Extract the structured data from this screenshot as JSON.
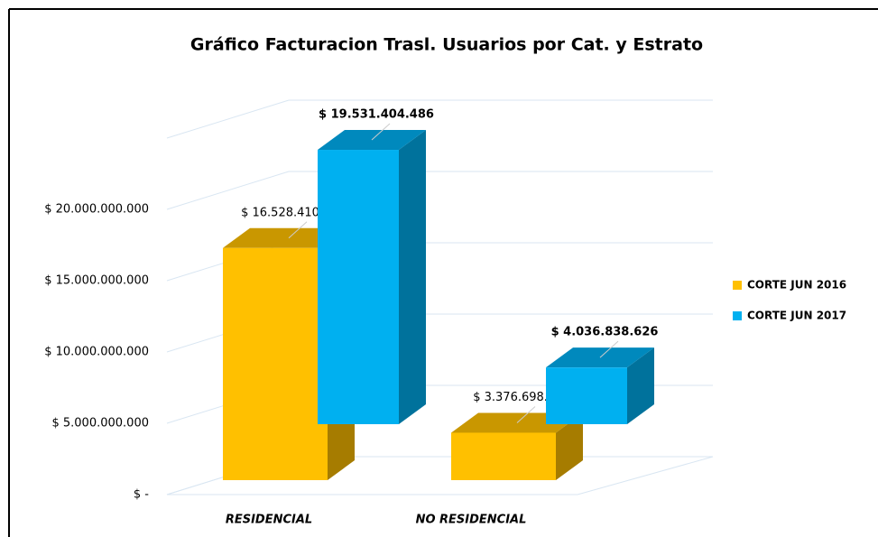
{
  "chart_data": {
    "type": "bar3d",
    "title": "Gráfico Facturacion Trasl. Usuarios por Cat. y Estrato",
    "categories": [
      "RESIDENCIAL",
      "NO RESIDENCIAL"
    ],
    "series": [
      {
        "name": "CORTE JUN 2016",
        "color": "#FFC000",
        "side": "#A67C00",
        "top": "#C99700",
        "bold": false,
        "values": [
          16528410565,
          3376698824
        ],
        "value_labels": [
          "$ 16.528.410.565",
          "$ 3.376.698.824"
        ]
      },
      {
        "name": "CORTE JUN 2017",
        "color": "#00B0F0",
        "side": "#00729C",
        "top": "#0089BD",
        "bold": true,
        "values": [
          19531404486,
          4036838626
        ],
        "value_labels": [
          "$ 19.531.404.486",
          "$ 4.036.838.626"
        ]
      }
    ],
    "ylim": [
      0,
      25000000000
    ],
    "yticks": [
      {
        "value": 0,
        "label": "$ -"
      },
      {
        "value": 5000000000,
        "label": "$ 5.000.000.000"
      },
      {
        "value": 10000000000,
        "label": "$ 10.000.000.000"
      },
      {
        "value": 15000000000,
        "label": "$ 15.000.000.000"
      },
      {
        "value": 20000000000,
        "label": "$ 20.000.000.000"
      }
    ],
    "grid": true,
    "legend": "right"
  }
}
